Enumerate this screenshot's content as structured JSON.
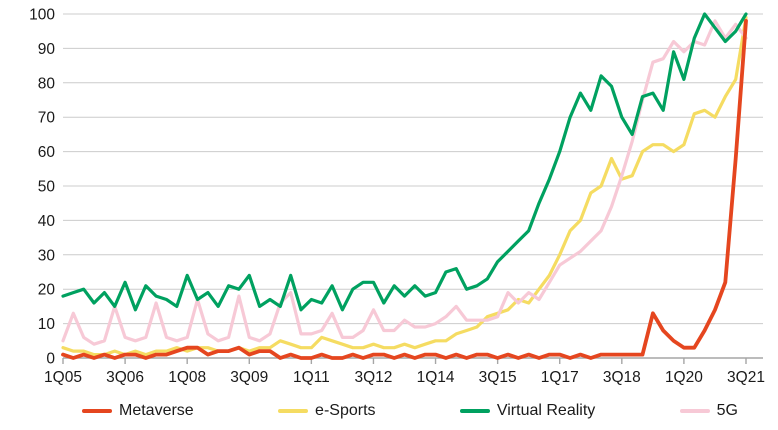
{
  "chart_data": {
    "type": "line",
    "title": "",
    "xlabel": "",
    "ylabel": "",
    "ylim": [
      0,
      100
    ],
    "grid": "horizontal",
    "legend_position": "bottom",
    "y_ticks": [
      0,
      10,
      20,
      30,
      40,
      50,
      60,
      70,
      80,
      90,
      100
    ],
    "x_tick_indices": [
      0,
      6,
      12,
      18,
      24,
      30,
      36,
      42,
      48,
      54,
      60,
      66
    ],
    "x_tick_labels": [
      "1Q05",
      "3Q06",
      "1Q08",
      "3Q09",
      "1Q11",
      "3Q12",
      "1Q14",
      "3Q15",
      "1Q17",
      "3Q18",
      "1Q20",
      "3Q21"
    ],
    "categories": [
      "1Q05",
      "2Q05",
      "3Q05",
      "4Q05",
      "1Q06",
      "2Q06",
      "3Q06",
      "4Q06",
      "1Q07",
      "2Q07",
      "3Q07",
      "4Q07",
      "1Q08",
      "2Q08",
      "3Q08",
      "4Q08",
      "1Q09",
      "2Q09",
      "3Q09",
      "4Q09",
      "1Q10",
      "2Q10",
      "3Q10",
      "4Q10",
      "1Q11",
      "2Q11",
      "3Q11",
      "4Q11",
      "1Q12",
      "2Q12",
      "3Q12",
      "4Q12",
      "1Q13",
      "2Q13",
      "3Q13",
      "4Q13",
      "1Q14",
      "2Q14",
      "3Q14",
      "4Q14",
      "1Q15",
      "2Q15",
      "3Q15",
      "4Q15",
      "1Q16",
      "2Q16",
      "3Q16",
      "4Q16",
      "1Q17",
      "2Q17",
      "3Q17",
      "4Q17",
      "1Q18",
      "2Q18",
      "3Q18",
      "4Q18",
      "1Q19",
      "2Q19",
      "3Q19",
      "4Q19",
      "1Q20",
      "2Q20",
      "3Q20",
      "4Q20",
      "1Q21",
      "2Q21",
      "3Q21"
    ],
    "series": [
      {
        "name": "Metaverse",
        "color": "#E5461F",
        "values": [
          1,
          0,
          1,
          0,
          1,
          0,
          1,
          1,
          0,
          1,
          1,
          2,
          3,
          3,
          1,
          2,
          2,
          3,
          1,
          2,
          2,
          0,
          1,
          0,
          0,
          1,
          0,
          0,
          1,
          0,
          1,
          1,
          0,
          1,
          0,
          1,
          1,
          0,
          1,
          0,
          1,
          1,
          0,
          1,
          0,
          1,
          0,
          1,
          1,
          0,
          1,
          0,
          1,
          1,
          1,
          1,
          1,
          13,
          8,
          5,
          3,
          3,
          8,
          14,
          22,
          58,
          98
        ]
      },
      {
        "name": "e-Sports",
        "color": "#F5DC62",
        "values": [
          3,
          2,
          2,
          1,
          1,
          2,
          1,
          2,
          1,
          2,
          2,
          3,
          2,
          3,
          3,
          2,
          2,
          3,
          2,
          3,
          3,
          5,
          4,
          3,
          3,
          6,
          5,
          4,
          3,
          3,
          4,
          3,
          3,
          4,
          3,
          4,
          5,
          5,
          7,
          8,
          9,
          12,
          13,
          14,
          17,
          16,
          20,
          24,
          30,
          37,
          40,
          48,
          50,
          58,
          52,
          53,
          60,
          62,
          62,
          60,
          62,
          71,
          72,
          70,
          76,
          81,
          99
        ]
      },
      {
        "name": "Virtual Reality",
        "color": "#00A160",
        "values": [
          18,
          19,
          20,
          16,
          19,
          15,
          22,
          14,
          21,
          18,
          17,
          15,
          24,
          17,
          19,
          15,
          21,
          20,
          24,
          15,
          17,
          15,
          24,
          14,
          17,
          16,
          21,
          14,
          20,
          22,
          22,
          16,
          21,
          18,
          21,
          18,
          19,
          25,
          26,
          20,
          21,
          23,
          28,
          31,
          34,
          37,
          45,
          52,
          60,
          70,
          77,
          72,
          82,
          79,
          70,
          65,
          76,
          77,
          72,
          89,
          81,
          93,
          100,
          96,
          92,
          95,
          100
        ]
      },
      {
        "name": "5G",
        "color": "#F7C9D6",
        "values": [
          5,
          13,
          6,
          4,
          5,
          15,
          6,
          5,
          6,
          16,
          6,
          5,
          6,
          17,
          7,
          5,
          6,
          18,
          6,
          5,
          7,
          16,
          19,
          7,
          7,
          8,
          13,
          6,
          6,
          8,
          14,
          8,
          8,
          11,
          9,
          9,
          10,
          12,
          15,
          11,
          11,
          11,
          12,
          19,
          16,
          19,
          17,
          22,
          27,
          29,
          31,
          34,
          37,
          44,
          53,
          63,
          75,
          86,
          87,
          92,
          89,
          92,
          91,
          98,
          93,
          97,
          93
        ]
      }
    ]
  },
  "style_colors": {
    "gridline": "#CCCCCC",
    "axis": "#A6A6A6",
    "tick_text": "#1A1A1A",
    "background": "#FFFFFF"
  }
}
